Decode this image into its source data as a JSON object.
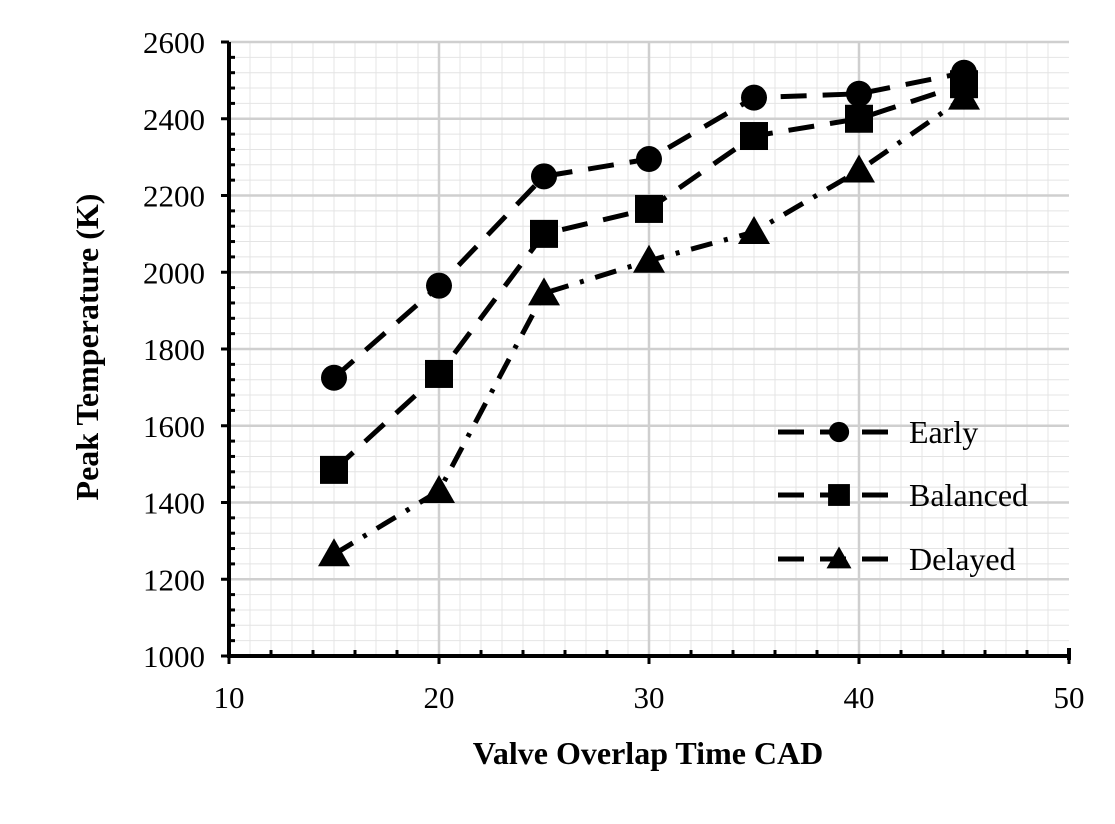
{
  "chart_data": {
    "type": "line",
    "title": "",
    "xlabel": "Valve Overlap Time CAD",
    "ylabel": "Peak Temperature (K)",
    "xlim": [
      10,
      50
    ],
    "ylim": [
      1000,
      2600
    ],
    "xticks": [
      10,
      20,
      30,
      40,
      50
    ],
    "yticks": [
      1000,
      1200,
      1400,
      1600,
      1800,
      2000,
      2200,
      2400,
      2600
    ],
    "grid": true,
    "legend_position": "bottom-right",
    "x": [
      15,
      20,
      25,
      30,
      35,
      40,
      45
    ],
    "series": [
      {
        "name": "Early",
        "marker": "circle",
        "dash": "dashed",
        "values": [
          1725,
          1965,
          2250,
          2295,
          2455,
          2465,
          2520
        ]
      },
      {
        "name": "Balanced",
        "marker": "square",
        "dash": "dashed",
        "values": [
          1485,
          1735,
          2100,
          2165,
          2355,
          2400,
          2490
        ]
      },
      {
        "name": "Delayed",
        "marker": "triangle",
        "dash": "dash-dot",
        "values": [
          1265,
          1430,
          1945,
          2030,
          2105,
          2265,
          2455
        ]
      }
    ]
  }
}
